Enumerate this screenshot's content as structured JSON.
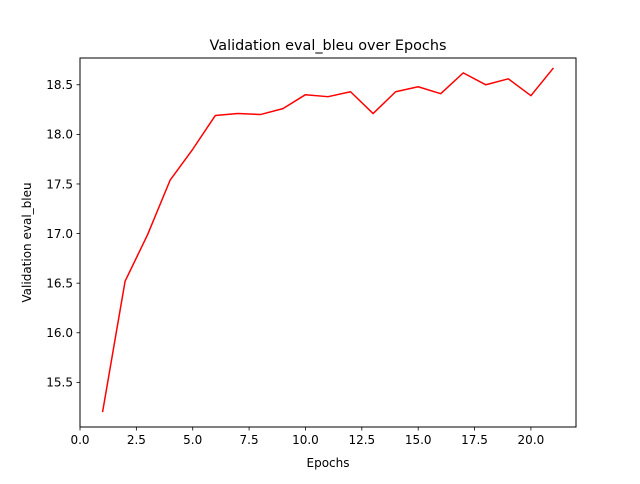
{
  "chart_data": {
    "type": "line",
    "title": "Validation eval_bleu over Epochs",
    "xlabel": "Epochs",
    "ylabel": "Validation eval_bleu",
    "xlim": [
      0.0,
      22.0
    ],
    "ylim": [
      15.05,
      18.77
    ],
    "xticks": [
      0.0,
      2.5,
      5.0,
      7.5,
      10.0,
      12.5,
      15.0,
      17.5,
      20.0
    ],
    "xtick_labels": [
      "0.0",
      "2.5",
      "5.0",
      "7.5",
      "10.0",
      "12.5",
      "15.0",
      "17.5",
      "20.0"
    ],
    "yticks": [
      15.5,
      16.0,
      16.5,
      17.0,
      17.5,
      18.0,
      18.5
    ],
    "ytick_labels": [
      "15.5",
      "16.0",
      "16.5",
      "17.0",
      "17.5",
      "18.0",
      "18.5"
    ],
    "grid": false,
    "legend": "none",
    "series": [
      {
        "color": "#ff0000",
        "x": [
          1,
          2,
          3,
          4,
          5,
          6,
          7,
          8,
          9,
          10,
          11,
          12,
          13,
          14,
          15,
          16,
          17,
          18,
          19,
          20,
          21
        ],
        "y": [
          15.2,
          16.52,
          16.99,
          17.54,
          17.85,
          18.19,
          18.21,
          18.2,
          18.26,
          18.4,
          18.38,
          18.43,
          18.21,
          18.43,
          18.48,
          18.41,
          18.62,
          18.5,
          18.56,
          18.39,
          18.67
        ]
      }
    ]
  }
}
